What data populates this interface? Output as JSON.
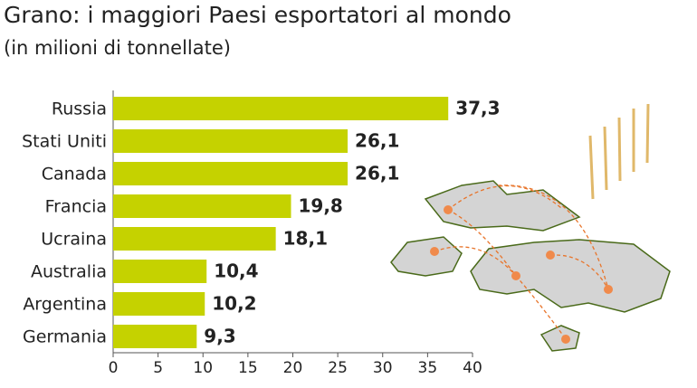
{
  "chart_data": {
    "type": "bar",
    "orientation": "horizontal",
    "title": "Grano: i maggiori Paesi esportatori al mondo",
    "subtitle": "(in milioni di tonnellate)",
    "categories": [
      "Russia",
      "Stati Uniti",
      "Canada",
      "Francia",
      "Ucraina",
      "Australia",
      "Argentina",
      "Germania"
    ],
    "values": [
      37.3,
      26.1,
      26.1,
      19.8,
      18.1,
      10.4,
      10.2,
      9.3
    ],
    "value_labels": [
      "37,3",
      "26,1",
      "26,1",
      "19,8",
      "18,1",
      "10,4",
      "10,2",
      "9,3"
    ],
    "color": "#c5d200",
    "xlim": [
      0,
      40
    ],
    "xticks": [
      0,
      5,
      10,
      15,
      20,
      25,
      30,
      35,
      40
    ]
  }
}
